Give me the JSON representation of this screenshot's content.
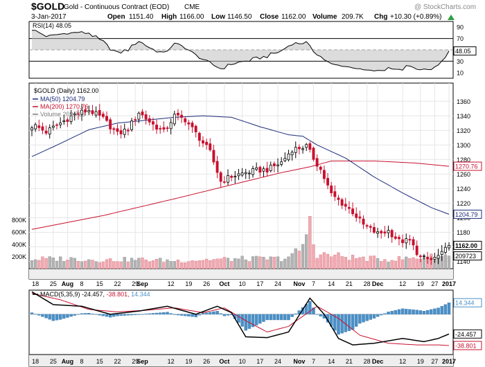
{
  "header": {
    "symbol": "$GOLD",
    "description": "Gold - Continuous Contract (EOD)",
    "exchange": "CME",
    "watermark": "@ StockCharts.com",
    "date": "3-Jan-2017",
    "open_label": "Open",
    "open": "1151.40",
    "high_label": "High",
    "high": "1166.00",
    "low_label": "Low",
    "low": "1146.50",
    "close_label": "Close",
    "close": "1162.00",
    "volume_label": "Volume",
    "volume": "209.7K",
    "chg_label": "Chg",
    "chg": "+10.30 (+0.89%)",
    "chg_arrow": "up-arrow-icon"
  },
  "colors": {
    "up": "#000000",
    "down": "#c8102e",
    "ma50": "#1c2a7a",
    "ma200": "#c8102e",
    "vol_up": "#b3b3b3",
    "vol_down": "#f0aab2",
    "macd_hist": "#4a90c8",
    "highlight": "#eeeeee"
  },
  "chart_data": [
    {
      "id": "rsi",
      "type": "line",
      "legend": "RSI(14) 48.05",
      "last_label": "48.05",
      "ylim": [
        0,
        100
      ],
      "reference_lines": [
        70,
        50,
        30
      ],
      "y_ticks": [
        "90",
        "70",
        "50",
        "30",
        "10"
      ],
      "y_tick_values": [
        90,
        70,
        50,
        30,
        10
      ]
    },
    {
      "id": "price",
      "type": "candlestick",
      "title": "$GOLD (Daily) 1162.00",
      "ylim": [
        1130,
        1385
      ],
      "y_ticks": [
        "1360",
        "1340",
        "1320",
        "1300",
        "1280",
        "1260",
        "1240",
        "1220",
        "1200",
        "1180",
        "1160",
        "1140"
      ],
      "y_tick_values": [
        1360,
        1340,
        1320,
        1300,
        1280,
        1260,
        1240,
        1220,
        1200,
        1180,
        1160,
        1140
      ],
      "legend": [
        {
          "name": "MA(50) 1204.79",
          "color": "#1c2a7a"
        },
        {
          "name": "MA(200) 1270.76",
          "color": "#c8102e"
        },
        {
          "name": "Volume 209,723",
          "color": "#808080"
        }
      ],
      "last_labels": [
        {
          "text": "1270.76",
          "value": 1270.76,
          "color": "#c8102e"
        },
        {
          "text": "1204.79",
          "value": 1204.79,
          "color": "#1c2a7a"
        },
        {
          "text": "1162.00",
          "value": 1162.0,
          "color": "#000000"
        },
        {
          "text": "209723",
          "value": 209723,
          "color": "#000000"
        }
      ],
      "x_ticks": [
        "18",
        "25",
        "Aug",
        "8",
        "15",
        "22",
        "29",
        "Sep",
        "12",
        "19",
        "26",
        "Oct",
        "10",
        "17",
        "24",
        "Nov",
        "7",
        "14",
        "21",
        "28",
        "Dec",
        "12",
        "19",
        "27",
        "2017"
      ],
      "x_tick_days": [
        1,
        6,
        10,
        14,
        19,
        24,
        29,
        31,
        39,
        44,
        49,
        54,
        59,
        64,
        69,
        75,
        79,
        84,
        89,
        94,
        97,
        104,
        109,
        113,
        117
      ],
      "close_x": [
        1,
        4,
        8,
        12,
        16,
        20,
        24,
        27,
        30,
        34,
        37,
        40,
        43,
        46,
        50,
        53,
        56,
        60,
        63,
        66,
        70,
        73,
        77,
        79,
        81,
        84,
        87,
        90,
        93,
        97,
        100,
        103,
        106,
        109,
        112,
        115,
        117
      ],
      "close_y": [
        1326,
        1318,
        1330,
        1342,
        1348,
        1336,
        1315,
        1322,
        1345,
        1328,
        1318,
        1340,
        1335,
        1316,
        1290,
        1250,
        1257,
        1262,
        1265,
        1266,
        1276,
        1294,
        1298,
        1282,
        1266,
        1232,
        1220,
        1208,
        1190,
        1178,
        1182,
        1168,
        1168,
        1145,
        1142,
        1150,
        1162
      ],
      "ma50_x": [
        0,
        8,
        16,
        24,
        32,
        40,
        48,
        56,
        64,
        72,
        76,
        80,
        88,
        96,
        104,
        112,
        117
      ],
      "ma50_y": [
        1284,
        1302,
        1321,
        1330,
        1334,
        1338,
        1340,
        1338,
        1325,
        1314,
        1312,
        1300,
        1282,
        1256,
        1234,
        1214,
        1204.79
      ],
      "ma200_x": [
        0,
        20,
        40,
        60,
        70,
        78,
        84,
        96,
        108,
        117
      ],
      "ma200_y": [
        1184,
        1203,
        1226,
        1250,
        1262,
        1270,
        1278,
        1278,
        1275,
        1270.76
      ],
      "volume_ylim": [
        0,
        1000000
      ],
      "volume_ticks": [
        "800K",
        "600K",
        "400K",
        "200K"
      ],
      "volume_tick_values": [
        800000,
        600000,
        400000,
        200000
      ],
      "volume_x": [
        0,
        10,
        20,
        30,
        40,
        50,
        60,
        70,
        74,
        78,
        80,
        86,
        90,
        100,
        110,
        117
      ],
      "volume_y": [
        155000,
        165000,
        140000,
        150000,
        130000,
        150000,
        160000,
        165000,
        225000,
        560000,
        240000,
        210000,
        180000,
        150000,
        185000,
        209723
      ],
      "volume_spike_x": [
        74,
        78
      ],
      "volume_spike_y": [
        330000,
        860000
      ]
    },
    {
      "id": "macd",
      "type": "line",
      "legend_label": "MACD(5,35,9)",
      "legend_values": [
        "-24.457",
        "-38.801",
        "14.344"
      ],
      "ylim": [
        -50,
        30
      ],
      "last_labels": [
        {
          "text": "14.344",
          "value": 14.344,
          "color": "#4a90c8"
        },
        {
          "text": "-24.457",
          "value": -24.457,
          "color": "#000000"
        },
        {
          "text": "-38.801",
          "value": -38.801,
          "color": "#c8102e"
        }
      ],
      "macd_x": [
        0,
        6,
        14,
        22,
        30,
        38,
        46,
        52,
        56,
        60,
        66,
        72,
        78,
        82,
        86,
        90,
        96,
        104,
        110,
        114,
        117
      ],
      "macd_y": [
        28,
        12,
        10,
        0,
        4,
        10,
        0,
        10,
        2,
        -28,
        -29,
        -22,
        20,
        0,
        -30,
        -38,
        -36,
        -30,
        -34,
        -30,
        -24.457
      ],
      "signal_x": [
        0,
        8,
        16,
        24,
        32,
        40,
        48,
        54,
        60,
        66,
        72,
        80,
        86,
        92,
        100,
        108,
        114,
        117
      ],
      "signal_y": [
        26,
        18,
        6,
        3,
        5,
        8,
        2,
        8,
        -8,
        -22,
        -15,
        10,
        -5,
        -26,
        -36,
        -38,
        -38,
        -38.801
      ]
    }
  ]
}
